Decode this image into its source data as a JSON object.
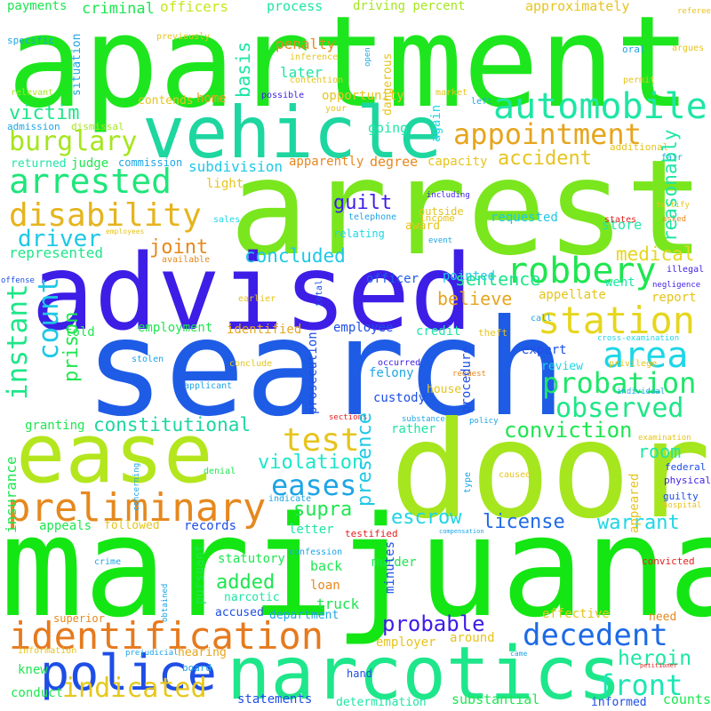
{
  "words": [
    {
      "text": "apartment",
      "color": "#1ee61e",
      "rotated": false
    },
    {
      "text": "arrest",
      "color": "#7ae61e",
      "rotated": false
    },
    {
      "text": "marijuana",
      "color": "#14e614",
      "rotated": false
    },
    {
      "text": "search",
      "color": "#1e5ce6",
      "rotated": false
    },
    {
      "text": "door",
      "color": "#a5e61e",
      "rotated": false
    },
    {
      "text": "advised",
      "color": "#3d1ee6",
      "rotated": false
    },
    {
      "text": "vehicle",
      "color": "#1ed6a0",
      "rotated": false
    },
    {
      "text": "ease",
      "color": "#b4e61e",
      "rotated": false
    },
    {
      "text": "narcotics",
      "color": "#1ee68a",
      "rotated": false
    },
    {
      "text": "police",
      "color": "#1e4ee6",
      "rotated": false
    },
    {
      "text": "identification",
      "color": "#e67a1e",
      "rotated": false
    },
    {
      "text": "preliminary",
      "color": "#e6881e",
      "rotated": false
    },
    {
      "text": "station",
      "color": "#e6d61e",
      "rotated": false
    },
    {
      "text": "robbery",
      "color": "#1ee650",
      "rotated": false
    },
    {
      "text": "automobile",
      "color": "#1ee6a5",
      "rotated": false
    },
    {
      "text": "appointment",
      "color": "#e6a51e",
      "rotated": false
    },
    {
      "text": "arrested",
      "color": "#1ee67a",
      "rotated": false
    },
    {
      "text": "disability",
      "color": "#e6b41e",
      "rotated": false
    },
    {
      "text": "area",
      "color": "#1ed6e6",
      "rotated": false
    },
    {
      "text": "probation",
      "color": "#1ee66a",
      "rotated": false
    },
    {
      "text": "decedent",
      "color": "#1e6ae6",
      "rotated": false
    },
    {
      "text": "observed",
      "color": "#1ee688",
      "rotated": false
    },
    {
      "text": "test",
      "color": "#e6c41e",
      "rotated": false
    },
    {
      "text": "eases",
      "color": "#1ea5e6",
      "rotated": false
    },
    {
      "text": "indicated",
      "color": "#e6c81e",
      "rotated": false
    },
    {
      "text": "front",
      "color": "#1ee6b4",
      "rotated": false
    },
    {
      "text": "burglary",
      "color": "#a5e61e",
      "rotated": false
    },
    {
      "text": "driver",
      "color": "#1ec8e6",
      "rotated": false
    },
    {
      "text": "victim",
      "color": "#1ee688",
      "rotated": false
    },
    {
      "text": "constitutional",
      "color": "#1ed6a0",
      "rotated": false
    },
    {
      "text": "conviction",
      "color": "#1ee650",
      "rotated": false
    },
    {
      "text": "probable",
      "color": "#3d1ee6",
      "rotated": false
    },
    {
      "text": "violation",
      "color": "#1ee6c8",
      "rotated": false
    },
    {
      "text": "escrow",
      "color": "#1ed6e6",
      "rotated": false
    },
    {
      "text": "warrant",
      "color": "#1ed6e6",
      "rotated": false
    },
    {
      "text": "accident",
      "color": "#e6c41e",
      "rotated": false
    },
    {
      "text": "concluded",
      "color": "#1ec8e6",
      "rotated": false
    },
    {
      "text": "sentence",
      "color": "#1ee688",
      "rotated": false
    },
    {
      "text": "medical",
      "color": "#e6d61e",
      "rotated": false
    },
    {
      "text": "joint",
      "color": "#e6881e",
      "rotated": false
    },
    {
      "text": "guilt",
      "color": "#3d1ee6",
      "rotated": false
    },
    {
      "text": "believe",
      "color": "#e6a51e",
      "rotated": false
    },
    {
      "text": "heroin",
      "color": "#1ee6a5",
      "rotated": false
    },
    {
      "text": "supra",
      "color": "#1ee650",
      "rotated": false
    },
    {
      "text": "license",
      "color": "#1e6ae6",
      "rotated": false
    },
    {
      "text": "added",
      "color": "#1ee650",
      "rotated": false
    },
    {
      "text": "room",
      "color": "#1ee6a5",
      "rotated": false
    },
    {
      "text": "represented",
      "color": "#1ee688",
      "rotated": false
    },
    {
      "text": "subdivision",
      "color": "#1ec8e6",
      "rotated": false
    },
    {
      "text": "criminal",
      "color": "#1ee650",
      "rotated": false
    },
    {
      "text": "officers",
      "color": "#c8e61e",
      "rotated": false
    },
    {
      "text": "process",
      "color": "#1ee6a5",
      "rotated": false
    },
    {
      "text": "driving percent",
      "color": "#a5e61e",
      "rotated": false
    },
    {
      "text": "approximately",
      "color": "#e6c41e",
      "rotated": false
    },
    {
      "text": "payments",
      "color": "#1ee650",
      "rotated": false
    },
    {
      "text": "penalty",
      "color": "#e6881e",
      "rotated": false
    },
    {
      "text": "later",
      "color": "#1ee6a5",
      "rotated": false
    },
    {
      "text": "opportunity",
      "color": "#e6c41e",
      "rotated": false
    },
    {
      "text": "home",
      "color": "#e6a51e",
      "rotated": false
    },
    {
      "text": "degree",
      "color": "#e6881e",
      "rotated": false
    },
    {
      "text": "capacity",
      "color": "#e6c41e",
      "rotated": false
    },
    {
      "text": "apparently",
      "color": "#e6881e",
      "rotated": false
    },
    {
      "text": "judge",
      "color": "#1ee650",
      "rotated": false
    },
    {
      "text": "returned",
      "color": "#1ee6a5",
      "rotated": false
    },
    {
      "text": "commission",
      "color": "#1ea5e6",
      "rotated": false
    },
    {
      "text": "going",
      "color": "#1ee6a5",
      "rotated": false
    },
    {
      "text": "requested",
      "color": "#1ec8e6",
      "rotated": false
    },
    {
      "text": "store",
      "color": "#1ee6a5",
      "rotated": false
    },
    {
      "text": "went",
      "color": "#1ee6a5",
      "rotated": false
    },
    {
      "text": "report",
      "color": "#e6c41e",
      "rotated": false
    },
    {
      "text": "officer",
      "color": "#1e5ce6",
      "rotated": false
    },
    {
      "text": "pointed",
      "color": "#1ec8e6",
      "rotated": false
    },
    {
      "text": "appellate",
      "color": "#e6c41e",
      "rotated": false
    },
    {
      "text": "employee",
      "color": "#1e4ee6",
      "rotated": false
    },
    {
      "text": "identified",
      "color": "#e6a51e",
      "rotated": false
    },
    {
      "text": "employment",
      "color": "#1ee650",
      "rotated": false
    },
    {
      "text": "told",
      "color": "#1ee650",
      "rotated": false
    },
    {
      "text": "credit",
      "color": "#1ee6a5",
      "rotated": false
    },
    {
      "text": "expert",
      "color": "#1e4ee6",
      "rotated": false
    },
    {
      "text": "review",
      "color": "#1ed6e6",
      "rotated": false
    },
    {
      "text": "felony",
      "color": "#1ea5e6",
      "rotated": false
    },
    {
      "text": "house",
      "color": "#e6c41e",
      "rotated": false
    },
    {
      "text": "custody",
      "color": "#1e4ee6",
      "rotated": false
    },
    {
      "text": "rather",
      "color": "#1ee6a5",
      "rotated": false
    },
    {
      "text": "granting",
      "color": "#1ee650",
      "rotated": false
    },
    {
      "text": "appeals",
      "color": "#1ee650",
      "rotated": false
    },
    {
      "text": "followed",
      "color": "#e6c41e",
      "rotated": false
    },
    {
      "text": "records",
      "color": "#1e4ee6",
      "rotated": false
    },
    {
      "text": "letter",
      "color": "#1ee6a5",
      "rotated": false
    },
    {
      "text": "statutory",
      "color": "#1ee650",
      "rotated": false
    },
    {
      "text": "back",
      "color": "#1ee650",
      "rotated": false
    },
    {
      "text": "loan",
      "color": "#e6881e",
      "rotated": false
    },
    {
      "text": "murder",
      "color": "#1ee650",
      "rotated": false
    },
    {
      "text": "truck",
      "color": "#1ee650",
      "rotated": false
    },
    {
      "text": "narcotic",
      "color": "#1ee6a5",
      "rotated": false
    },
    {
      "text": "accused",
      "color": "#1e4ee6",
      "rotated": false
    },
    {
      "text": "department",
      "color": "#1ea5e6",
      "rotated": false
    },
    {
      "text": "employer",
      "color": "#e6c41e",
      "rotated": false
    },
    {
      "text": "around",
      "color": "#e6c41e",
      "rotated": false
    },
    {
      "text": "effective",
      "color": "#e6c41e",
      "rotated": false
    },
    {
      "text": "need",
      "color": "#e6881e",
      "rotated": false
    },
    {
      "text": "hearing",
      "color": "#e6a51e",
      "rotated": false
    },
    {
      "text": "conduct",
      "color": "#1ee650",
      "rotated": false
    },
    {
      "text": "statements",
      "color": "#1e4ee6",
      "rotated": false
    },
    {
      "text": "determination",
      "color": "#1ee6a5",
      "rotated": false
    },
    {
      "text": "substantial",
      "color": "#1ee650",
      "rotated": false
    },
    {
      "text": "informed",
      "color": "#1e4ee6",
      "rotated": false
    },
    {
      "text": "counts",
      "color": "#1ee650",
      "rotated": false
    },
    {
      "text": "knew",
      "color": "#1ee650",
      "rotated": false
    },
    {
      "text": "hand",
      "color": "#1e4ee6",
      "rotated": false
    },
    {
      "text": "superior",
      "color": "#e6881e",
      "rotated": false
    },
    {
      "text": "board",
      "color": "#1ea5e6",
      "rotated": false
    },
    {
      "text": "information",
      "color": "#e6c41e",
      "rotated": false
    },
    {
      "text": "light",
      "color": "#e6c41e",
      "rotated": false
    },
    {
      "text": "relating",
      "color": "#1ed6e6",
      "rotated": false
    },
    {
      "text": "award",
      "color": "#e6c41e",
      "rotated": false
    },
    {
      "text": "income",
      "color": "#e6c41e",
      "rotated": false
    },
    {
      "text": "outside",
      "color": "#e6c41e",
      "rotated": false
    },
    {
      "text": "contends",
      "color": "#e6c41e",
      "rotated": false
    },
    {
      "text": "sales",
      "color": "#1ed6e6",
      "rotated": false
    },
    {
      "text": "available",
      "color": "#e6881e",
      "rotated": false
    },
    {
      "text": "earlier",
      "color": "#e6c41e",
      "rotated": false
    },
    {
      "text": "admission",
      "color": "#1ea5e6",
      "rotated": false
    },
    {
      "text": "dismissal",
      "color": "#a5e61e",
      "rotated": false
    },
    {
      "text": "relevant",
      "color": "#a5e61e",
      "rotated": false
    },
    {
      "text": "specific",
      "color": "#1ea5e6",
      "rotated": false
    },
    {
      "text": "previously",
      "color": "#e6c41e",
      "rotated": false
    },
    {
      "text": "inference",
      "color": "#e6c41e",
      "rotated": false
    },
    {
      "text": "contention",
      "color": "#e6c41e",
      "rotated": false
    },
    {
      "text": "possible",
      "color": "#3d1ee6",
      "rotated": false
    },
    {
      "text": "your",
      "color": "#e6c41e",
      "rotated": false
    },
    {
      "text": "market",
      "color": "#e6c41e",
      "rotated": false
    },
    {
      "text": "left",
      "color": "#1ea5e6",
      "rotated": false
    },
    {
      "text": "oral",
      "color": "#1ea5e6",
      "rotated": false
    },
    {
      "text": "argues",
      "color": "#e6c41e",
      "rotated": false
    },
    {
      "text": "permit",
      "color": "#e6c41e",
      "rotated": false
    },
    {
      "text": "referee",
      "color": "#e6c41e",
      "rotated": false
    },
    {
      "text": "additional",
      "color": "#e6c41e",
      "rotated": false
    },
    {
      "text": "fair",
      "color": "#1ea5e6",
      "rotated": false
    },
    {
      "text": "including",
      "color": "#3d1ee6",
      "rotated": false
    },
    {
      "text": "telephone",
      "color": "#1ea5e6",
      "rotated": false
    },
    {
      "text": "event",
      "color": "#1ea5e6",
      "rotated": false
    },
    {
      "text": "testify",
      "color": "#e6c41e",
      "rotated": false
    },
    {
      "text": "states",
      "color": "#e61e1e",
      "rotated": false
    },
    {
      "text": "asked",
      "color": "#e6881e",
      "rotated": false
    },
    {
      "text": "employees",
      "color": "#e6c41e",
      "rotated": false
    },
    {
      "text": "offense",
      "color": "#1e4ee6",
      "rotated": false
    },
    {
      "text": "illegal",
      "color": "#3d1ee6",
      "rotated": false
    },
    {
      "text": "negligence",
      "color": "#3d1ee6",
      "rotated": false
    },
    {
      "text": "theft",
      "color": "#e6c41e",
      "rotated": false
    },
    {
      "text": "call",
      "color": "#1ea5e6",
      "rotated": false
    },
    {
      "text": "stolen",
      "color": "#1ea5e6",
      "rotated": false
    },
    {
      "text": "conclude",
      "color": "#e6c41e",
      "rotated": false
    },
    {
      "text": "applicant",
      "color": "#1ea5e6",
      "rotated": false
    },
    {
      "text": "occurred",
      "color": "#3d1ee6",
      "rotated": false
    },
    {
      "text": "request",
      "color": "#e6881e",
      "rotated": false
    },
    {
      "text": "privilege",
      "color": "#e6c41e",
      "rotated": false
    },
    {
      "text": "cross-examination",
      "color": "#1ed6e6",
      "rotated": false
    },
    {
      "text": "individual",
      "color": "#1ea5e6",
      "rotated": false
    },
    {
      "text": "sections",
      "color": "#e61e1e",
      "rotated": false
    },
    {
      "text": "substance",
      "color": "#1ea5e6",
      "rotated": false
    },
    {
      "text": "policy",
      "color": "#1ea5e6",
      "rotated": false
    },
    {
      "text": "examination",
      "color": "#e6c41e",
      "rotated": false
    },
    {
      "text": "denial",
      "color": "#1ee650",
      "rotated": false
    },
    {
      "text": "caused",
      "color": "#e6c41e",
      "rotated": false
    },
    {
      "text": "federal",
      "color": "#1e4ee6",
      "rotated": false
    },
    {
      "text": "physical",
      "color": "#3d1ee6",
      "rotated": false
    },
    {
      "text": "guilty",
      "color": "#1e4ee6",
      "rotated": false
    },
    {
      "text": "hospital",
      "color": "#e6c41e",
      "rotated": false
    },
    {
      "text": "testified",
      "color": "#e61e1e",
      "rotated": false
    },
    {
      "text": "compensation",
      "color": "#1ea5e6",
      "rotated": false
    },
    {
      "text": "crime",
      "color": "#1ea5e6",
      "rotated": false
    },
    {
      "text": "confession",
      "color": "#1ea5e6",
      "rotated": false
    },
    {
      "text": "convicted",
      "color": "#e61e1e",
      "rotated": false
    },
    {
      "text": "prejudicial",
      "color": "#1ea5e6",
      "rotated": false
    },
    {
      "text": "came",
      "color": "#1ea5e6",
      "rotated": false
    },
    {
      "text": "petitioner",
      "color": "#e61e1e",
      "rotated": false
    },
    {
      "text": "instant",
      "color": "#1ee688",
      "rotated": true
    },
    {
      "text": "count",
      "color": "#1ec8e6",
      "rotated": true
    },
    {
      "text": "presence",
      "color": "#1ec8e6",
      "rotated": true
    },
    {
      "text": "prison",
      "color": "#1ee650",
      "rotated": true
    },
    {
      "text": "basis",
      "color": "#1ee6a5",
      "rotated": true
    },
    {
      "text": "insurance",
      "color": "#1ee650",
      "rotated": true
    },
    {
      "text": "reasonably",
      "color": "#1ee6a5",
      "rotated": true
    },
    {
      "text": "procedure",
      "color": "#1e4ee6",
      "rotated": true
    },
    {
      "text": "prosecution",
      "color": "#1e4ee6",
      "rotated": true
    },
    {
      "text": "minutes",
      "color": "#1e4ee6",
      "rotated": true
    },
    {
      "text": "pursuant",
      "color": "#1ee650",
      "rotated": true
    },
    {
      "text": "again",
      "color": "#1ed6e6",
      "rotated": true
    },
    {
      "text": "appeared",
      "color": "#e6c41e",
      "rotated": true
    },
    {
      "text": "situation",
      "color": "#1ea5e6",
      "rotated": true
    },
    {
      "text": "dangerous",
      "color": "#e6c41e",
      "rotated": true
    },
    {
      "text": "open",
      "color": "#1ea5e6",
      "rotated": true
    },
    {
      "text": "obtained",
      "color": "#1ea5e6",
      "rotated": true
    },
    {
      "text": "concerning",
      "color": "#1ea5e6",
      "rotated": true
    },
    {
      "text": "total",
      "color": "#1e4ee6",
      "rotated": true
    },
    {
      "text": "type",
      "color": "#1ea5e6",
      "rotated": true
    },
    {
      "text": "indicate",
      "color": "#1ea5e6",
      "rotated": false
    }
  ]
}
